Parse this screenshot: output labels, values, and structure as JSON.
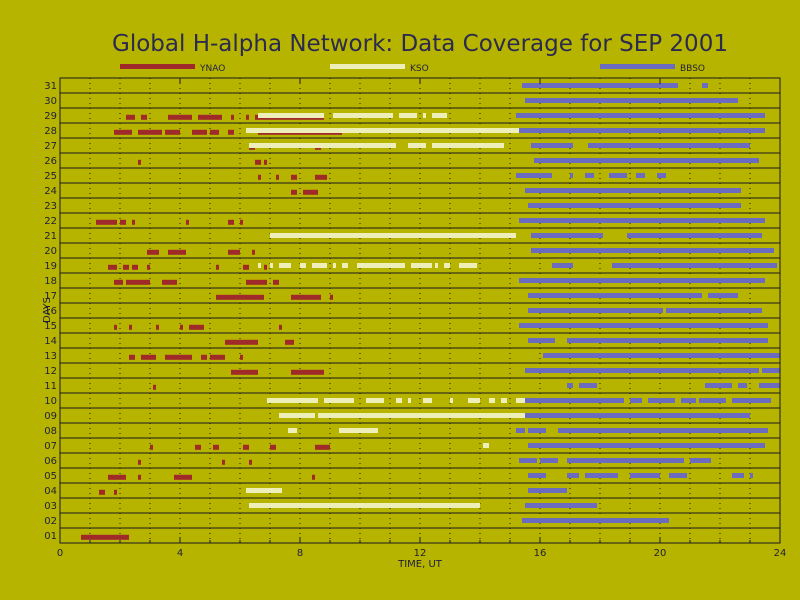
{
  "chart_data": {
    "type": "gantt",
    "title": "Global H-alpha Network: Data Coverage for SEP 2001",
    "xlabel": "TIME, UT",
    "ylabel": "DAYS",
    "xlim": [
      0,
      24
    ],
    "ylim": [
      0.5,
      31.5
    ],
    "xticks": [
      "0",
      "4",
      "8",
      "12",
      "16",
      "20",
      "24"
    ],
    "yticks": [
      "01",
      "02",
      "03",
      "04",
      "05",
      "06",
      "07",
      "08",
      "09",
      "10",
      "11",
      "12",
      "13",
      "14",
      "15",
      "16",
      "17",
      "18",
      "19",
      "20",
      "21",
      "22",
      "23",
      "24",
      "25",
      "26",
      "27",
      "28",
      "29",
      "30",
      "31"
    ],
    "grid": true,
    "legend_position": "top",
    "series": [
      {
        "name": "YNAO",
        "color": "#a02a2a",
        "offset": -0.12,
        "intervals": [
          [
            1,
            0.7,
            2.3
          ],
          [
            4,
            1.3,
            1.5
          ],
          [
            4,
            1.8,
            1.9
          ],
          [
            5,
            1.6,
            2.2
          ],
          [
            5,
            2.6,
            2.7
          ],
          [
            5,
            3.8,
            4.4
          ],
          [
            5,
            8.4,
            8.5
          ],
          [
            6,
            2.6,
            2.7
          ],
          [
            6,
            5.4,
            5.5
          ],
          [
            6,
            6.3,
            6.4
          ],
          [
            7,
            3.0,
            3.1
          ],
          [
            7,
            4.5,
            4.7
          ],
          [
            7,
            5.1,
            5.3
          ],
          [
            7,
            6.1,
            6.3
          ],
          [
            7,
            7.0,
            7.2
          ],
          [
            7,
            8.5,
            9.0
          ],
          [
            11,
            3.1,
            3.2
          ],
          [
            12,
            5.7,
            6.6
          ],
          [
            12,
            7.7,
            8.8
          ],
          [
            13,
            2.3,
            2.5
          ],
          [
            13,
            2.7,
            3.2
          ],
          [
            13,
            3.5,
            4.4
          ],
          [
            13,
            4.7,
            4.9
          ],
          [
            13,
            5.0,
            5.5
          ],
          [
            13,
            6.0,
            6.1
          ],
          [
            14,
            5.5,
            6.6
          ],
          [
            14,
            7.5,
            7.8
          ],
          [
            15,
            1.8,
            1.9
          ],
          [
            15,
            2.3,
            2.4
          ],
          [
            15,
            3.2,
            3.3
          ],
          [
            15,
            4.0,
            4.1
          ],
          [
            15,
            4.3,
            4.8
          ],
          [
            15,
            7.3,
            7.4
          ],
          [
            17,
            5.2,
            6.8
          ],
          [
            17,
            7.7,
            8.7
          ],
          [
            17,
            9.0,
            9.1
          ],
          [
            18,
            1.8,
            2.1
          ],
          [
            18,
            2.2,
            3.0
          ],
          [
            18,
            3.4,
            3.9
          ],
          [
            18,
            6.2,
            6.9
          ],
          [
            18,
            7.1,
            7.3
          ],
          [
            19,
            1.6,
            1.9
          ],
          [
            19,
            2.1,
            2.3
          ],
          [
            19,
            2.4,
            2.6
          ],
          [
            19,
            2.9,
            3.0
          ],
          [
            19,
            5.2,
            5.3
          ],
          [
            19,
            6.1,
            6.3
          ],
          [
            19,
            6.8,
            6.9
          ],
          [
            20,
            2.9,
            3.3
          ],
          [
            20,
            3.6,
            4.2
          ],
          [
            20,
            5.6,
            6.0
          ],
          [
            20,
            6.4,
            6.5
          ],
          [
            22,
            1.2,
            1.9
          ],
          [
            22,
            2.0,
            2.2
          ],
          [
            22,
            2.4,
            2.5
          ],
          [
            22,
            4.2,
            4.3
          ],
          [
            22,
            5.6,
            5.8
          ],
          [
            22,
            6.0,
            6.1
          ],
          [
            24,
            7.7,
            7.9
          ],
          [
            24,
            8.1,
            8.6
          ],
          [
            25,
            6.6,
            6.7
          ],
          [
            25,
            7.2,
            7.3
          ],
          [
            25,
            7.7,
            7.9
          ],
          [
            25,
            8.5,
            8.9
          ],
          [
            26,
            2.6,
            2.7
          ],
          [
            26,
            6.5,
            6.7
          ],
          [
            26,
            6.8,
            6.9
          ],
          [
            27,
            6.3,
            6.5
          ],
          [
            27,
            8.5,
            8.7
          ],
          [
            28,
            1.8,
            2.4
          ],
          [
            28,
            2.6,
            3.4
          ],
          [
            28,
            3.5,
            4.0
          ],
          [
            28,
            4.4,
            4.9
          ],
          [
            28,
            5.0,
            5.3
          ],
          [
            28,
            5.6,
            5.8
          ],
          [
            28,
            6.6,
            9.4
          ],
          [
            29,
            2.2,
            2.5
          ],
          [
            29,
            2.7,
            2.9
          ],
          [
            29,
            3.6,
            4.4
          ],
          [
            29,
            4.6,
            5.4
          ],
          [
            29,
            5.7,
            5.8
          ],
          [
            29,
            6.2,
            6.3
          ],
          [
            29,
            6.5,
            8.8
          ]
        ]
      },
      {
        "name": "KSO",
        "color": "#eeeeb8",
        "offset": 0.0,
        "intervals": [
          [
            3,
            6.3,
            14.0
          ],
          [
            4,
            6.2,
            7.4
          ],
          [
            7,
            14.1,
            14.3
          ],
          [
            8,
            7.6,
            7.9
          ],
          [
            8,
            9.3,
            10.6
          ],
          [
            9,
            7.3,
            8.5
          ],
          [
            9,
            8.6,
            16.1
          ],
          [
            10,
            6.9,
            8.6
          ],
          [
            10,
            8.8,
            9.8
          ],
          [
            10,
            10.2,
            10.8
          ],
          [
            10,
            11.2,
            11.4
          ],
          [
            10,
            11.6,
            11.7
          ],
          [
            10,
            12.1,
            12.4
          ],
          [
            10,
            13.0,
            13.1
          ],
          [
            10,
            13.6,
            14.0
          ],
          [
            10,
            14.3,
            14.5
          ],
          [
            10,
            14.7,
            14.9
          ],
          [
            10,
            15.2,
            15.5
          ],
          [
            19,
            6.6,
            6.7
          ],
          [
            19,
            7.0,
            7.1
          ],
          [
            19,
            7.3,
            7.7
          ],
          [
            19,
            8.0,
            8.2
          ],
          [
            19,
            8.4,
            8.9
          ],
          [
            19,
            9.1,
            9.2
          ],
          [
            19,
            9.4,
            9.6
          ],
          [
            19,
            9.9,
            11.5
          ],
          [
            19,
            11.7,
            12.4
          ],
          [
            19,
            12.5,
            12.6
          ],
          [
            19,
            12.8,
            13.0
          ],
          [
            19,
            13.3,
            13.9
          ],
          [
            21,
            7.0,
            15.2
          ],
          [
            27,
            6.3,
            11.2
          ],
          [
            27,
            11.6,
            12.2
          ],
          [
            27,
            12.4,
            14.8
          ],
          [
            28,
            6.2,
            16.5
          ],
          [
            29,
            6.6,
            8.8
          ],
          [
            29,
            9.1,
            11.1
          ],
          [
            29,
            11.3,
            11.9
          ],
          [
            29,
            12.1,
            12.2
          ],
          [
            29,
            12.4,
            12.9
          ]
        ]
      },
      {
        "name": "BBSO",
        "color": "#6b6bbf",
        "offset": 0.0,
        "intervals": [
          [
            2,
            15.4,
            20.3
          ],
          [
            3,
            15.5,
            17.9
          ],
          [
            4,
            15.6,
            16.9
          ],
          [
            5,
            15.6,
            16.2
          ],
          [
            5,
            16.9,
            17.3
          ],
          [
            5,
            17.5,
            18.6
          ],
          [
            5,
            19.0,
            20.0
          ],
          [
            5,
            20.3,
            20.9
          ],
          [
            5,
            22.4,
            22.8
          ],
          [
            5,
            23.0,
            23.1
          ],
          [
            6,
            15.3,
            15.9
          ],
          [
            6,
            16.0,
            16.6
          ],
          [
            6,
            16.9,
            20.8
          ],
          [
            6,
            21.0,
            21.7
          ],
          [
            7,
            15.6,
            23.5
          ],
          [
            8,
            15.2,
            15.5
          ],
          [
            8,
            15.6,
            16.2
          ],
          [
            8,
            16.6,
            23.6
          ],
          [
            9,
            15.5,
            23.0
          ],
          [
            10,
            15.5,
            18.8
          ],
          [
            10,
            19.0,
            19.4
          ],
          [
            10,
            19.6,
            20.5
          ],
          [
            10,
            20.7,
            21.2
          ],
          [
            10,
            21.3,
            22.2
          ],
          [
            10,
            22.4,
            23.7
          ],
          [
            11,
            16.9,
            17.1
          ],
          [
            11,
            17.3,
            17.9
          ],
          [
            11,
            21.5,
            22.4
          ],
          [
            11,
            22.6,
            22.9
          ],
          [
            11,
            23.3,
            24.0
          ],
          [
            12,
            15.5,
            23.3
          ],
          [
            12,
            23.4,
            24.0
          ],
          [
            13,
            16.1,
            24.0
          ],
          [
            14,
            15.6,
            16.5
          ],
          [
            14,
            16.9,
            23.6
          ],
          [
            15,
            15.3,
            23.6
          ],
          [
            16,
            15.6,
            20.1
          ],
          [
            16,
            20.2,
            23.4
          ],
          [
            17,
            15.6,
            21.4
          ],
          [
            17,
            21.6,
            22.6
          ],
          [
            18,
            15.3,
            23.5
          ],
          [
            19,
            16.4,
            17.1
          ],
          [
            19,
            18.4,
            23.9
          ],
          [
            20,
            15.7,
            23.8
          ],
          [
            21,
            15.7,
            18.1
          ],
          [
            21,
            18.9,
            23.4
          ],
          [
            22,
            15.3,
            23.5
          ],
          [
            23,
            15.6,
            22.7
          ],
          [
            24,
            15.5,
            22.7
          ],
          [
            25,
            15.2,
            16.4
          ],
          [
            25,
            17.0,
            17.1
          ],
          [
            25,
            17.5,
            17.8
          ],
          [
            25,
            18.3,
            18.9
          ],
          [
            25,
            19.2,
            19.5
          ],
          [
            25,
            19.9,
            20.2
          ],
          [
            26,
            15.8,
            23.3
          ],
          [
            27,
            15.7,
            17.1
          ],
          [
            27,
            17.6,
            23.0
          ],
          [
            28,
            15.3,
            23.5
          ],
          [
            29,
            15.2,
            23.5
          ],
          [
            30,
            15.5,
            22.6
          ],
          [
            31,
            15.4,
            20.6
          ],
          [
            31,
            21.4,
            21.6
          ]
        ]
      }
    ]
  }
}
